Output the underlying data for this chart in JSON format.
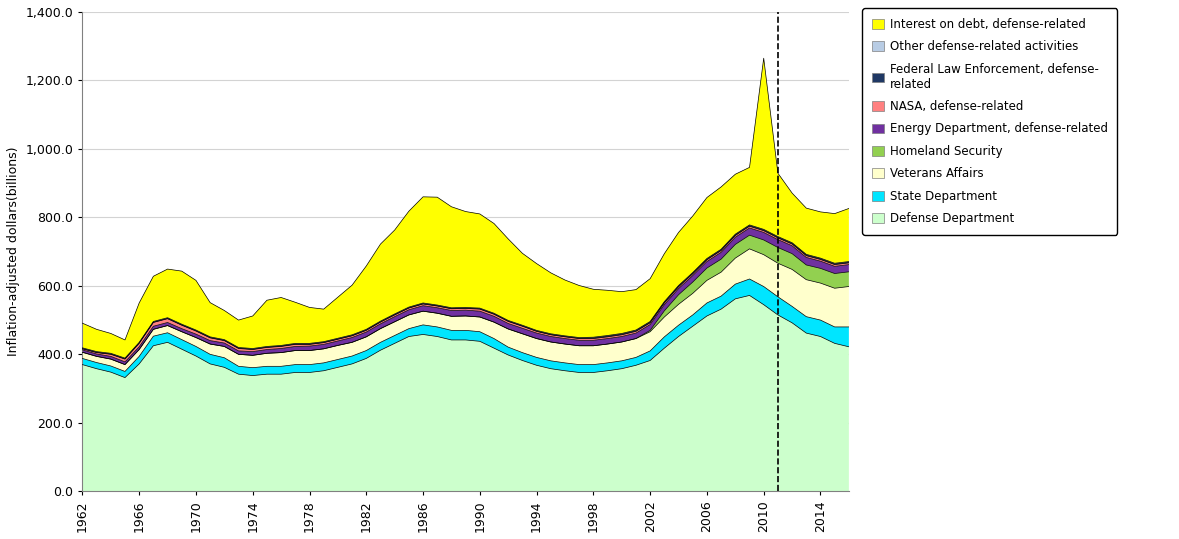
{
  "years": [
    1962,
    1963,
    1964,
    1965,
    1966,
    1967,
    1968,
    1969,
    1970,
    1971,
    1972,
    1973,
    1974,
    1975,
    1976,
    1977,
    1978,
    1979,
    1980,
    1981,
    1982,
    1983,
    1984,
    1985,
    1986,
    1987,
    1988,
    1989,
    1990,
    1991,
    1992,
    1993,
    1994,
    1995,
    1996,
    1997,
    1998,
    1999,
    2000,
    2001,
    2002,
    2003,
    2004,
    2005,
    2006,
    2007,
    2008,
    2009,
    2010,
    2011,
    2012,
    2013,
    2014,
    2015,
    2016
  ],
  "defense_dept": [
    370,
    358,
    348,
    332,
    372,
    425,
    435,
    415,
    395,
    372,
    362,
    342,
    338,
    342,
    342,
    347,
    347,
    352,
    362,
    372,
    388,
    412,
    432,
    452,
    458,
    452,
    442,
    442,
    438,
    418,
    398,
    382,
    368,
    358,
    352,
    347,
    347,
    352,
    358,
    368,
    382,
    418,
    452,
    482,
    512,
    532,
    562,
    572,
    545,
    515,
    492,
    462,
    452,
    432,
    422
  ],
  "state_dept": [
    18,
    18,
    18,
    18,
    22,
    28,
    28,
    28,
    28,
    28,
    28,
    23,
    23,
    23,
    23,
    23,
    23,
    23,
    23,
    23,
    23,
    23,
    23,
    23,
    28,
    28,
    28,
    28,
    28,
    28,
    23,
    23,
    23,
    23,
    23,
    23,
    23,
    23,
    23,
    23,
    28,
    33,
    33,
    33,
    38,
    38,
    43,
    48,
    53,
    53,
    48,
    48,
    48,
    48,
    58
  ],
  "veterans": [
    18,
    18,
    20,
    20,
    20,
    20,
    21,
    23,
    26,
    30,
    33,
    35,
    36,
    38,
    40,
    41,
    41,
    41,
    41,
    40,
    40,
    40,
    40,
    40,
    40,
    40,
    41,
    42,
    43,
    48,
    53,
    55,
    55,
    55,
    55,
    55,
    55,
    55,
    55,
    55,
    56,
    58,
    61,
    63,
    66,
    70,
    76,
    88,
    93,
    98,
    108,
    108,
    108,
    113,
    118
  ],
  "homeland": [
    0,
    0,
    0,
    0,
    0,
    0,
    0,
    0,
    0,
    0,
    0,
    0,
    0,
    0,
    0,
    0,
    0,
    0,
    0,
    0,
    0,
    0,
    0,
    0,
    0,
    0,
    0,
    0,
    0,
    0,
    0,
    0,
    0,
    0,
    0,
    0,
    0,
    0,
    0,
    0,
    4,
    18,
    28,
    33,
    36,
    38,
    40,
    40,
    43,
    46,
    46,
    43,
    43,
    43,
    43
  ],
  "energy_dept": [
    7,
    7,
    8,
    8,
    8,
    9,
    9,
    9,
    10,
    10,
    10,
    10,
    11,
    11,
    12,
    12,
    13,
    13,
    13,
    14,
    14,
    14,
    15,
    15,
    16,
    16,
    17,
    17,
    17,
    17,
    16,
    16,
    16,
    16,
    16,
    16,
    16,
    16,
    16,
    16,
    17,
    18,
    18,
    19,
    19,
    20,
    21,
    21,
    22,
    23,
    23,
    22,
    21,
    21,
    21
  ],
  "nasa": [
    3,
    4,
    6,
    8,
    10,
    11,
    11,
    10,
    9,
    8,
    7,
    7,
    6,
    6,
    6,
    6,
    5,
    5,
    5,
    5,
    5,
    5,
    5,
    5,
    5,
    5,
    5,
    5,
    6,
    6,
    6,
    6,
    5,
    5,
    5,
    5,
    5,
    5,
    5,
    5,
    5,
    5,
    5,
    5,
    5,
    5,
    5,
    5,
    5,
    5,
    5,
    5,
    5,
    5,
    5
  ],
  "federal_law": [
    1,
    1,
    1,
    1,
    1,
    1,
    1,
    1,
    1,
    1,
    1,
    1,
    1,
    1,
    1,
    1,
    1,
    1,
    1,
    1,
    1,
    1,
    1,
    1,
    1,
    1,
    1,
    1,
    1,
    1,
    1,
    1,
    1,
    1,
    1,
    1,
    2,
    2,
    2,
    2,
    2,
    2,
    2,
    2,
    2,
    2,
    2,
    2,
    2,
    2,
    2,
    2,
    2,
    2,
    2
  ],
  "other": [
    2,
    2,
    2,
    2,
    2,
    2,
    2,
    2,
    2,
    2,
    2,
    2,
    2,
    2,
    2,
    2,
    2,
    2,
    2,
    2,
    2,
    2,
    2,
    2,
    2,
    2,
    2,
    2,
    2,
    2,
    2,
    2,
    2,
    2,
    2,
    2,
    2,
    2,
    2,
    2,
    2,
    2,
    2,
    2,
    2,
    2,
    2,
    2,
    2,
    2,
    2,
    2,
    2,
    2,
    2
  ],
  "interest": [
    72,
    65,
    58,
    53,
    115,
    132,
    142,
    155,
    145,
    100,
    85,
    80,
    95,
    135,
    140,
    120,
    105,
    95,
    120,
    145,
    185,
    225,
    245,
    280,
    310,
    315,
    295,
    280,
    275,
    262,
    238,
    210,
    195,
    178,
    163,
    152,
    140,
    132,
    122,
    118,
    125,
    140,
    155,
    165,
    178,
    182,
    175,
    168,
    500,
    185,
    145,
    135,
    135,
    145,
    155
  ],
  "dashed_line_x": 2011,
  "ylabel": "Inflation-adjusted dollars(billions)",
  "ylim": [
    0,
    1400
  ],
  "yticks": [
    0,
    200,
    400,
    600,
    800,
    1000,
    1200,
    1400
  ],
  "ytick_labels": [
    "0.0",
    "200.0",
    "400.0",
    "600.0",
    "800.0",
    "1,000.0",
    "1,200.0",
    "1,400.0"
  ],
  "colors": {
    "defense_dept": "#ccffcc",
    "state_dept": "#00e5ff",
    "veterans": "#ffffcc",
    "homeland": "#92d050",
    "energy_dept": "#7030a0",
    "nasa": "#ff8080",
    "federal_law": "#1f3864",
    "other": "#b8cce4",
    "interest": "#ffff00"
  },
  "legend_labels": [
    "Interest on debt, defense-related",
    "Other defense-related activities",
    "Federal Law Enforcement, defense-\nrelated",
    "NASA, defense-related",
    "Energy Department, defense-related",
    "Homeland Security",
    "Veterans Affairs",
    "State Department",
    "Defense Department"
  ],
  "legend_colors_order": [
    "interest",
    "other",
    "federal_law",
    "nasa",
    "energy_dept",
    "homeland",
    "veterans",
    "state_dept",
    "defense_dept"
  ]
}
